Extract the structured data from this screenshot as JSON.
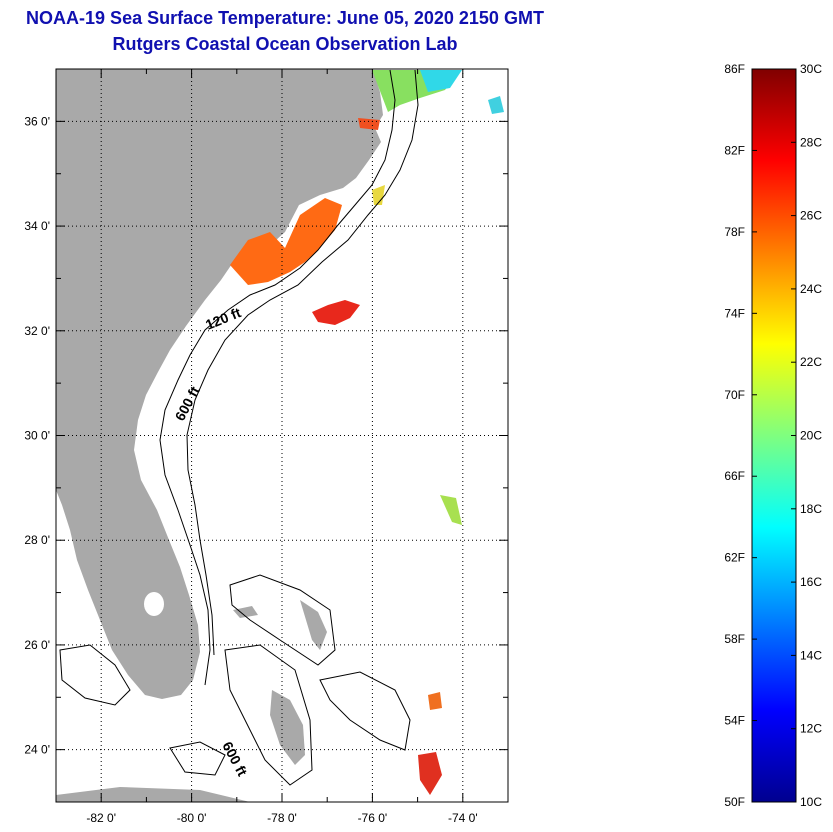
{
  "header": {
    "title": "NOAA-19 Sea Surface Temperature:  June 05, 2020 2150 GMT",
    "subtitle": "Rutgers Coastal Ocean Observation Lab"
  },
  "map": {
    "lat_labels": [
      "36 0'",
      "34 0'",
      "32 0'",
      "30 0'",
      "28 0'",
      "26 0'",
      "24 0'"
    ],
    "lon_labels": [
      "-82 0'",
      "-80 0'",
      "-78 0'",
      "-76 0'",
      "-74 0'"
    ],
    "lat_range": [
      23,
      37
    ],
    "lon_range": [
      -83,
      -73
    ],
    "contours": {
      "label_120": "120 ft",
      "label_600_a": "600 ft",
      "label_600_b": "600 ft"
    },
    "colors": {
      "land": "#a9a9a9",
      "contour": "#000000"
    }
  },
  "colorbar": {
    "f_labels": [
      "86F",
      "82F",
      "78F",
      "74F",
      "70F",
      "66F",
      "62F",
      "58F",
      "54F",
      "50F"
    ],
    "c_labels": [
      "30C",
      "28C",
      "26C",
      "24C",
      "22C",
      "20C",
      "18C",
      "16C",
      "14C",
      "12C",
      "10C"
    ],
    "range_c": [
      10,
      30
    ],
    "range_f": [
      50,
      86
    ]
  }
}
